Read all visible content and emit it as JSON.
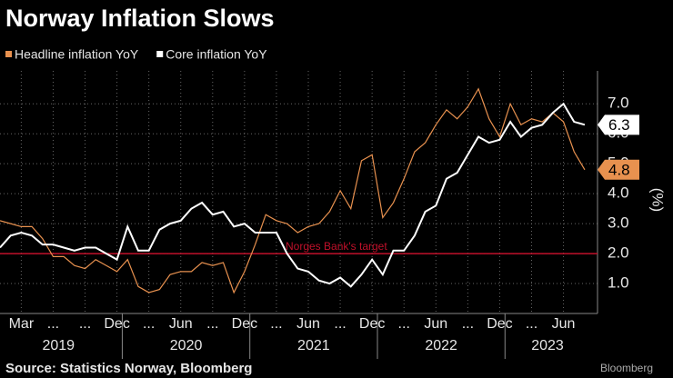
{
  "chart_data": {
    "type": "line",
    "title": "Norway Inflation Slows",
    "y_label": "(%)",
    "source": "Source: Statistics Norway, Bloomberg",
    "brand": "Bloomberg",
    "categories": [
      null,
      null,
      "Mar",
      null,
      null,
      "...",
      null,
      null,
      "...",
      null,
      null,
      "Dec",
      null,
      null,
      "...",
      null,
      null,
      "Jun",
      null,
      null,
      "...",
      null,
      null,
      "Dec",
      null,
      null,
      "...",
      null,
      null,
      "Jun",
      null,
      null,
      "...",
      null,
      null,
      "Dec",
      null,
      null,
      "...",
      null,
      null,
      "Jun",
      null,
      null,
      "...",
      null,
      null,
      "Dec",
      null,
      null,
      "...",
      null,
      null,
      "Jun",
      null,
      null
    ],
    "years": [
      "2019",
      "2020",
      "2021",
      "2022",
      "2023"
    ],
    "series": [
      {
        "name": "Headline inflation YoY",
        "color": "#e8914f",
        "values": [
          3.1,
          3.0,
          2.9,
          2.9,
          2.5,
          1.9,
          1.9,
          1.6,
          1.5,
          1.8,
          1.6,
          1.4,
          1.8,
          0.9,
          0.7,
          0.8,
          1.3,
          1.4,
          1.4,
          1.7,
          1.6,
          1.7,
          0.7,
          1.4,
          2.3,
          3.3,
          3.1,
          3.0,
          2.7,
          2.9,
          3.0,
          3.4,
          4.1,
          3.5,
          5.1,
          5.3,
          3.2,
          3.7,
          4.5,
          5.4,
          5.7,
          6.3,
          6.8,
          6.5,
          6.9,
          7.5,
          6.5,
          5.9,
          7.0,
          6.3,
          6.5,
          6.4,
          6.7,
          6.4,
          5.4,
          4.8
        ]
      },
      {
        "name": "Core inflation YoY",
        "color": "#ffffff",
        "values": [
          2.2,
          2.6,
          2.7,
          2.6,
          2.3,
          2.3,
          2.2,
          2.1,
          2.2,
          2.2,
          2.0,
          1.8,
          2.9,
          2.1,
          2.1,
          2.8,
          3.0,
          3.1,
          3.5,
          3.7,
          3.3,
          3.4,
          2.9,
          3.0,
          2.7,
          2.7,
          2.7,
          2.0,
          1.5,
          1.4,
          1.1,
          1.0,
          1.2,
          0.9,
          1.3,
          1.8,
          1.3,
          2.1,
          2.1,
          2.6,
          3.4,
          3.6,
          4.5,
          4.7,
          5.3,
          5.9,
          5.7,
          5.8,
          6.4,
          5.9,
          6.2,
          6.3,
          6.7,
          7.0,
          6.4,
          6.3
        ]
      }
    ],
    "target": {
      "value": 2.0,
      "label": "Norges Bank's target",
      "color": "#c0102a"
    },
    "ylim": [
      0,
      8.1
    ],
    "yticks": [
      {
        "value": 1,
        "label": "1.0"
      },
      {
        "value": 2,
        "label": "2.0"
      },
      {
        "value": 3,
        "label": "3.0"
      },
      {
        "value": 4,
        "label": "4.0"
      },
      {
        "value": 5,
        "label": "5.0"
      },
      {
        "value": 6,
        "label": "6.0"
      },
      {
        "value": 7,
        "label": "7.0"
      }
    ],
    "grid": true
  }
}
